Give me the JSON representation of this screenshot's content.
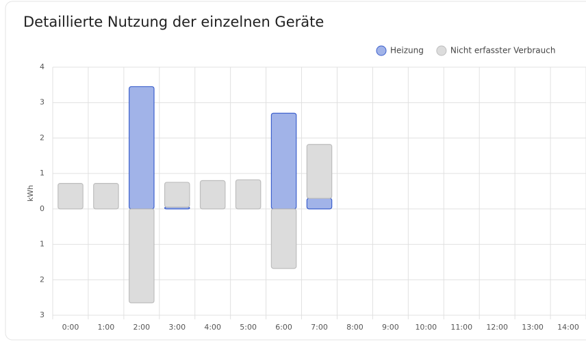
{
  "chart_data": {
    "type": "bar",
    "stacked": true,
    "title": "Detaillierte Nutzung der einzelnen Geräte",
    "ylabel": "kWh",
    "categories": [
      "0:00",
      "1:00",
      "2:00",
      "3:00",
      "4:00",
      "5:00",
      "6:00",
      "7:00",
      "8:00",
      "9:00",
      "10:00",
      "11:00",
      "12:00",
      "13:00",
      "14:00"
    ],
    "series": [
      {
        "name": "Heizung",
        "color": "#a1b3e8",
        "values": [
          null,
          null,
          3.45,
          0.05,
          null,
          null,
          2.7,
          0.3,
          null,
          null,
          null,
          null,
          null,
          null,
          null
        ]
      },
      {
        "name": "Nicht erfasster Verbrauch",
        "color": "#dcdcdc",
        "values": [
          0.72,
          0.72,
          -2.65,
          0.7,
          0.8,
          0.82,
          -1.68,
          1.52,
          null,
          null,
          null,
          null,
          null,
          null,
          null
        ]
      }
    ],
    "ylim": [
      -3,
      4
    ],
    "yticks": [
      {
        "value": -3,
        "label": "3"
      },
      {
        "value": -2,
        "label": "2"
      },
      {
        "value": -1,
        "label": "1"
      },
      0,
      1,
      2,
      3,
      4
    ],
    "grid": true,
    "legend": "top-right"
  }
}
